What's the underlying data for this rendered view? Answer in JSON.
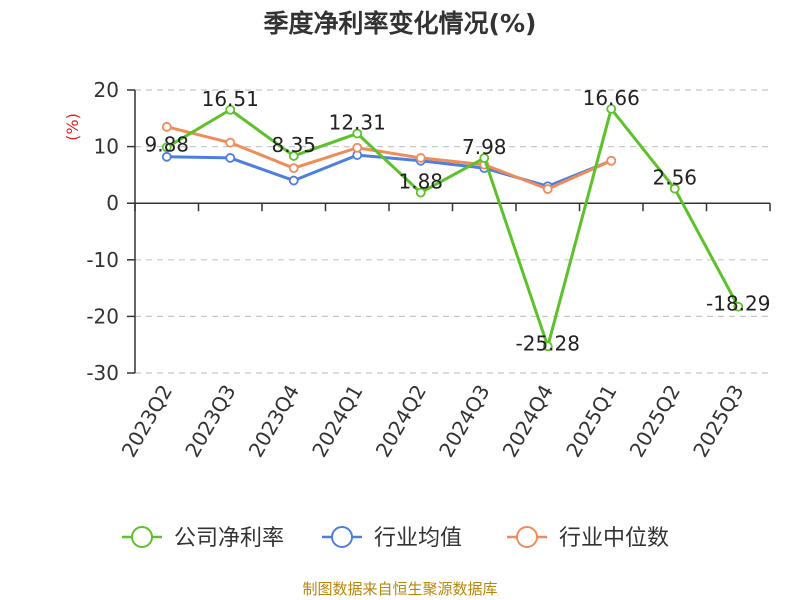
{
  "title": "季度净利率变化情况(%)",
  "source": "制图数据来自恒生聚源数据库",
  "chart_data": {
    "type": "line",
    "title": "季度净利率变化情况(%)",
    "ylabel": "(%)",
    "ylim": [
      -30,
      20
    ],
    "yticks": [
      20,
      10,
      0,
      -10,
      -20,
      -30
    ],
    "grid": true,
    "legend_position": "bottom",
    "categories": [
      "2023Q2",
      "2023Q3",
      "2023Q4",
      "2024Q1",
      "2024Q2",
      "2024Q3",
      "2024Q4",
      "2025Q1",
      "2025Q2",
      "2025Q3"
    ],
    "series": [
      {
        "name": "公司净利率",
        "color": "#5cc12a",
        "show_labels": true,
        "values": [
          9.88,
          16.51,
          8.35,
          12.31,
          1.88,
          7.98,
          -25.28,
          16.66,
          2.56,
          -18.29
        ]
      },
      {
        "name": "行业均值",
        "color": "#4e7fe0",
        "show_labels": false,
        "values": [
          8.2,
          8.0,
          4.0,
          8.5,
          7.5,
          6.2,
          3.0,
          7.5,
          null,
          null
        ]
      },
      {
        "name": "行业中位数",
        "color": "#f08c5a",
        "show_labels": false,
        "values": [
          13.5,
          10.7,
          6.2,
          9.8,
          8.0,
          6.8,
          2.5,
          7.5,
          null,
          null
        ]
      }
    ]
  }
}
